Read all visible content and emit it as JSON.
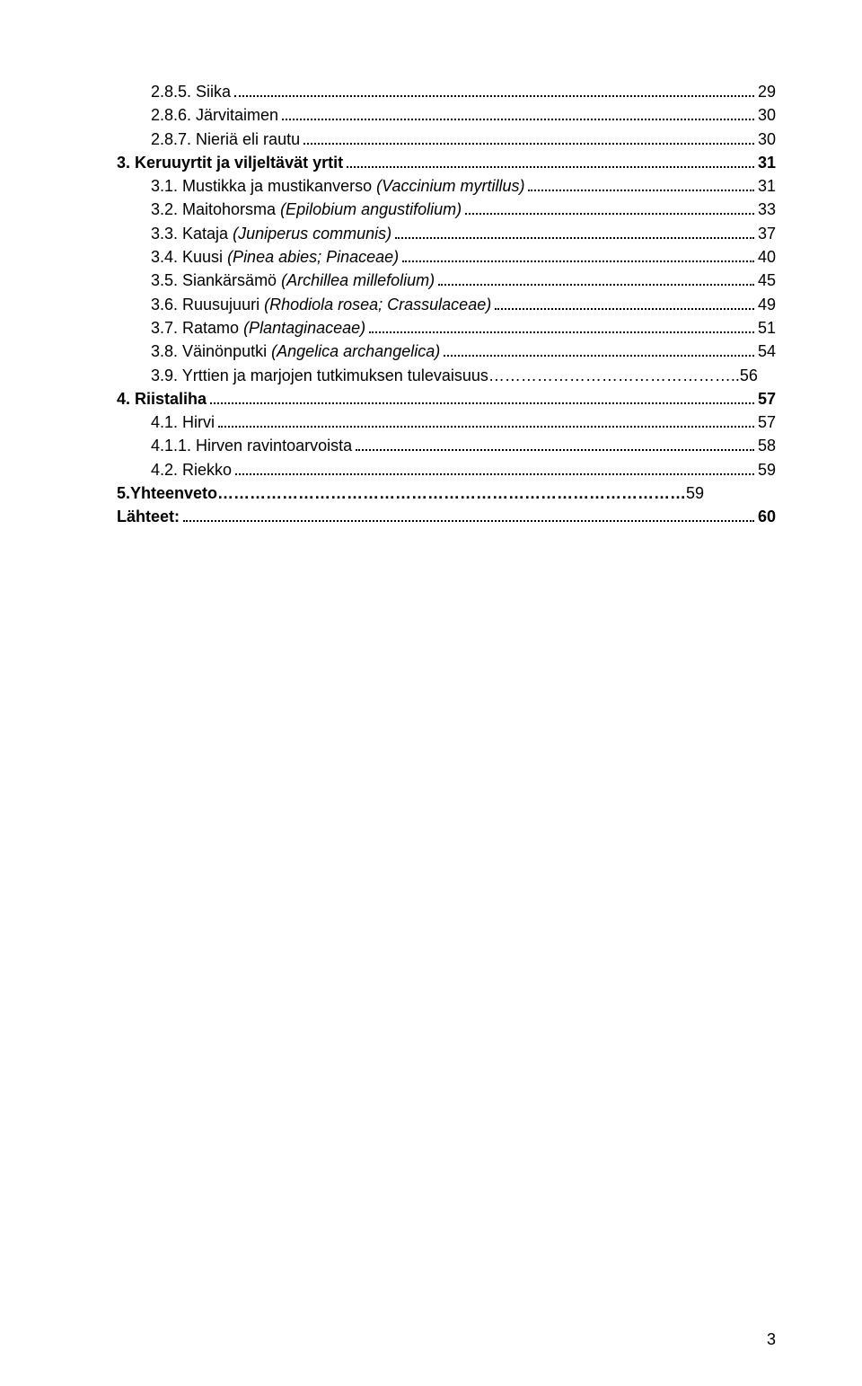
{
  "entries": [
    {
      "indent": 1,
      "parts": [
        {
          "t": "2.8.5. Siika"
        }
      ],
      "page": "29",
      "bold": false,
      "leader": true
    },
    {
      "indent": 1,
      "parts": [
        {
          "t": "2.8.6. Järvitaimen"
        }
      ],
      "page": "30",
      "bold": false,
      "leader": true
    },
    {
      "indent": 1,
      "parts": [
        {
          "t": "2.8.7. Nieriä eli rautu"
        }
      ],
      "page": "30",
      "bold": false,
      "leader": true
    },
    {
      "indent": 0,
      "parts": [
        {
          "t": "3. Keruuyrtit ja viljeltävät yrtit"
        }
      ],
      "page": "31",
      "bold": true,
      "leader": true
    },
    {
      "indent": 1,
      "parts": [
        {
          "t": "3.1. Mustikka ja mustikanverso "
        },
        {
          "t": "(Vaccinium myrtillus)",
          "i": true
        }
      ],
      "page": "31",
      "bold": false,
      "leader": true
    },
    {
      "indent": 1,
      "parts": [
        {
          "t": "3.2. Maitohorsma "
        },
        {
          "t": "(Epilobium angustifolium)",
          "i": true
        }
      ],
      "page": "33",
      "bold": false,
      "leader": true
    },
    {
      "indent": 1,
      "parts": [
        {
          "t": "3.3. Kataja "
        },
        {
          "t": "(Juniperus communis)",
          "i": true
        }
      ],
      "page": "37",
      "bold": false,
      "leader": true
    },
    {
      "indent": 1,
      "parts": [
        {
          "t": "3.4. Kuusi "
        },
        {
          "t": "(Pinea abies; Pinaceae)",
          "i": true
        }
      ],
      "page": "40",
      "bold": false,
      "leader": true
    },
    {
      "indent": 1,
      "parts": [
        {
          "t": "3.5. Siankärsämö "
        },
        {
          "t": "(Archillea millefolium)",
          "i": true
        }
      ],
      "page": "45",
      "bold": false,
      "leader": true
    },
    {
      "indent": 1,
      "parts": [
        {
          "t": "3.6. Ruusujuuri "
        },
        {
          "t": "(Rhodiola rosea; Crassulaceae)",
          "i": true
        }
      ],
      "page": "49",
      "bold": false,
      "leader": true
    },
    {
      "indent": 1,
      "parts": [
        {
          "t": "3.7. Ratamo "
        },
        {
          "t": "(Plantaginaceae)",
          "i": true
        }
      ],
      "page": "51",
      "bold": false,
      "leader": true
    },
    {
      "indent": 1,
      "parts": [
        {
          "t": "3.8. Väinönputki "
        },
        {
          "t": "(Angelica archangelica)",
          "i": true
        }
      ],
      "page": "54",
      "bold": false,
      "leader": true
    },
    {
      "indent": 1,
      "parts": [
        {
          "t": "3.9. Yrttien ja marjojen tutkimuksen tulevaisuus………………………………………"
        }
      ],
      "page": "..56",
      "bold": false,
      "leader": false
    },
    {
      "indent": 0,
      "parts": [
        {
          "t": "4. Riistaliha"
        }
      ],
      "page": "57",
      "bold": true,
      "leader": true
    },
    {
      "indent": 1,
      "parts": [
        {
          "t": "4.1. Hirvi"
        }
      ],
      "page": "57",
      "bold": false,
      "leader": true
    },
    {
      "indent": 1,
      "parts": [
        {
          "t": "4.1.1. Hirven ravintoarvoista"
        }
      ],
      "page": "58",
      "bold": false,
      "leader": true
    },
    {
      "indent": 1,
      "parts": [
        {
          "t": "4.2. Riekko"
        }
      ],
      "page": "59",
      "bold": false,
      "leader": true
    },
    {
      "indent": 0,
      "parts": [
        {
          "t": "5.Yhteenveto……………………………………………………………………………"
        }
      ],
      "page": " 59",
      "bold": true,
      "leader": false,
      "suffixBold": false
    },
    {
      "indent": 0,
      "parts": [
        {
          "t": "Lähteet:"
        }
      ],
      "page": "60",
      "bold": true,
      "leader": true
    }
  ],
  "page_number": "3"
}
